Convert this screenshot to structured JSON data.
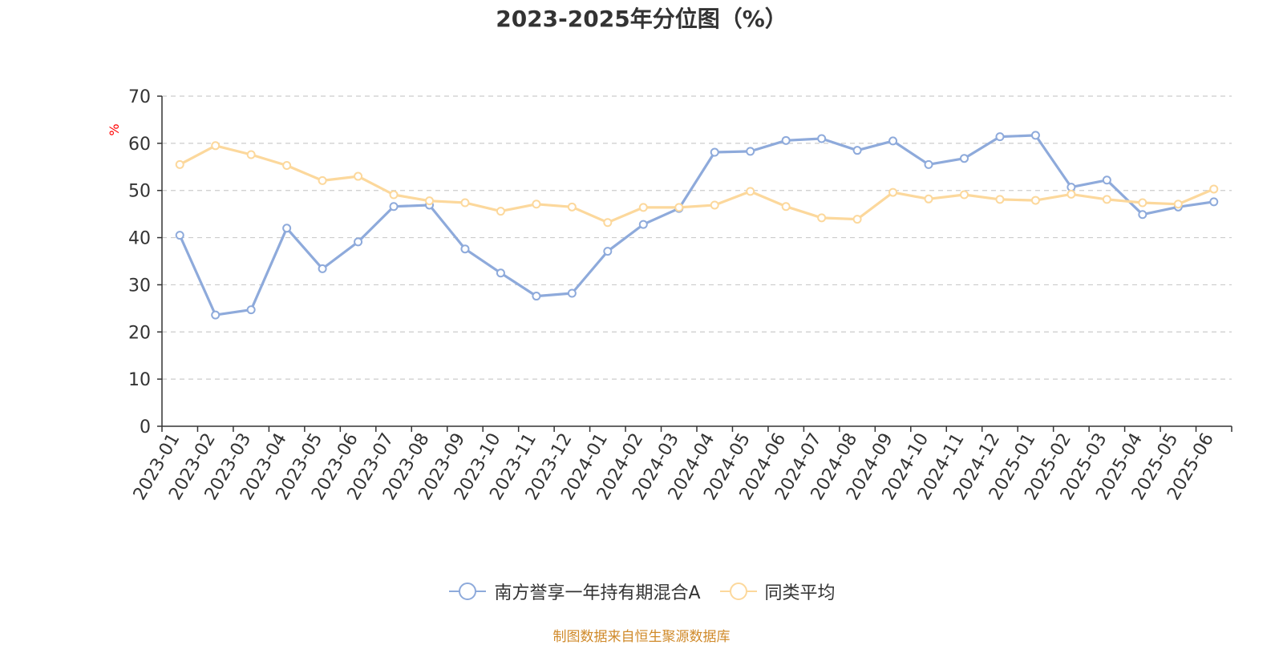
{
  "source_note": "制图数据来自恒生聚源数据库",
  "colors": {
    "axis": "#333333",
    "grid": "#cccccc",
    "unit": "#ff0000"
  },
  "chart_data": {
    "type": "line",
    "title": "2023-2025年分位图（%）",
    "ylabel": "%",
    "xlabel": "",
    "ylim": [
      0,
      70
    ],
    "yticks": [
      0,
      10,
      20,
      30,
      40,
      50,
      60,
      70
    ],
    "grid": true,
    "legend_position": "bottom",
    "categories": [
      "2023-01",
      "2023-02",
      "2023-03",
      "2023-04",
      "2023-05",
      "2023-06",
      "2023-07",
      "2023-08",
      "2023-09",
      "2023-10",
      "2023-11",
      "2023-12",
      "2024-01",
      "2024-02",
      "2024-03",
      "2024-04",
      "2024-05",
      "2024-06",
      "2024-07",
      "2024-08",
      "2024-09",
      "2024-10",
      "2024-11",
      "2024-12",
      "2025-01",
      "2025-02",
      "2025-03",
      "2025-04",
      "2025-05",
      "2025-06"
    ],
    "series": [
      {
        "name": "南方誉享一年持有期混合A",
        "color": "#8eaadb",
        "values": [
          40.5,
          23.6,
          24.7,
          42,
          33.4,
          39.1,
          46.6,
          46.9,
          37.6,
          32.5,
          27.6,
          28.2,
          37.1,
          42.8,
          46.2,
          58.1,
          58.3,
          60.6,
          61,
          58.5,
          60.5,
          55.5,
          56.8,
          61.4,
          61.7,
          50.7,
          52.2,
          44.9,
          46.5,
          47.6
        ]
      },
      {
        "name": "同类平均",
        "color": "#fcd89c",
        "values": [
          55.5,
          59.5,
          57.6,
          55.3,
          52.1,
          53,
          49.1,
          47.8,
          47.4,
          45.6,
          47.1,
          46.5,
          43.2,
          46.4,
          46.4,
          46.9,
          49.8,
          46.6,
          44.2,
          43.9,
          49.6,
          48.2,
          49.1,
          48.1,
          47.9,
          49.2,
          48.1,
          47.4,
          47.1,
          50.3
        ]
      }
    ]
  }
}
